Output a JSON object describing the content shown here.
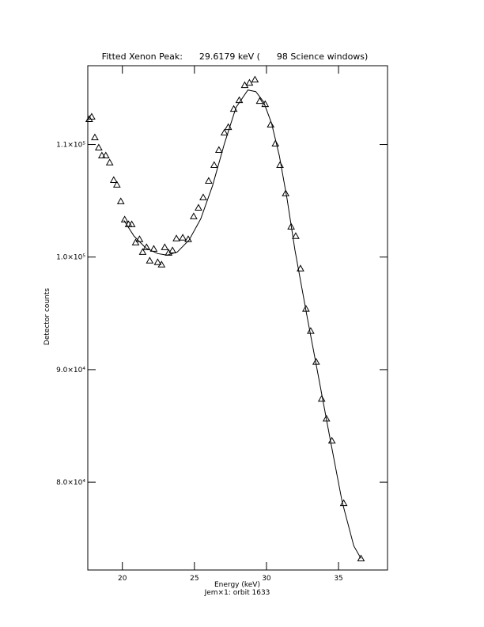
{
  "chart_data": {
    "type": "scatter",
    "title": "Fitted Xenon Peak:      29.6179 keV (      98 Science windows)",
    "x_label": "Energy (keV)",
    "subtitle": "Jem×1: orbit 1633",
    "y_label": "Detector counts",
    "xlim": [
      17.6,
      38.4
    ],
    "ylim": [
      72200,
      117000
    ],
    "xticks": [
      20,
      25,
      30,
      35
    ],
    "yticks": [
      {
        "value": 80000,
        "label": "8.0×10⁴"
      },
      {
        "value": 90000,
        "label": "9.0×10⁴"
      },
      {
        "value": 100000,
        "label": "1.0×10⁵"
      },
      {
        "value": 110000,
        "label": "1.1×10⁵"
      }
    ],
    "series": [
      {
        "style": "markers",
        "color": "#000000",
        "x": [
          17.7,
          17.87,
          18.09,
          18.36,
          18.58,
          18.85,
          19.12,
          19.4,
          19.62,
          19.89,
          20.16,
          20.43,
          20.65,
          20.92,
          21.19,
          21.41,
          21.68,
          21.9,
          22.18,
          22.45,
          22.72,
          22.94,
          23.21,
          23.48,
          23.75,
          24.19,
          24.57,
          24.95,
          25.28,
          25.61,
          25.99,
          26.37,
          26.7,
          27.08,
          27.35,
          27.73,
          28.11,
          28.49,
          28.82,
          29.2,
          29.53,
          29.91,
          30.29,
          30.62,
          30.94,
          31.33,
          31.71,
          32.03,
          32.36,
          32.74,
          33.07,
          33.45,
          33.83,
          34.16,
          34.54,
          35.36,
          36.56
        ],
        "values": [
          112250,
          112460,
          110630,
          109720,
          109020,
          109020,
          108390,
          106840,
          106420,
          104950,
          103330,
          102910,
          102910,
          101290,
          101580,
          100450,
          100870,
          99680,
          100730,
          99540,
          99330,
          100870,
          100380,
          100590,
          101650,
          101720,
          101580,
          103610,
          104380,
          105300,
          106770,
          108170,
          109510,
          111050,
          111540,
          113160,
          113930,
          115270,
          115480,
          115760,
          113860,
          113580,
          111760,
          110070,
          108170,
          105650,
          102700,
          101860,
          98980,
          95400,
          93430,
          90690,
          87400,
          85640,
          83680,
          78130,
          73220
        ]
      },
      {
        "style": "line",
        "color": "#000000",
        "x": [
          20.11,
          20.81,
          21.63,
          22.45,
          23.1,
          23.81,
          24.63,
          25.44,
          26.26,
          27.08,
          27.89,
          28.71,
          29.26,
          29.8,
          30.35,
          30.89,
          31.44,
          31.98,
          32.8,
          33.61,
          34.43,
          35.25,
          36.06,
          36.56
        ],
        "values": [
          103260,
          101860,
          100800,
          100310,
          100170,
          100450,
          101510,
          103400,
          106350,
          110070,
          113300,
          114840,
          114700,
          113790,
          111900,
          109020,
          105090,
          100590,
          94840,
          89360,
          83750,
          78270,
          74340,
          73220
        ]
      }
    ]
  }
}
